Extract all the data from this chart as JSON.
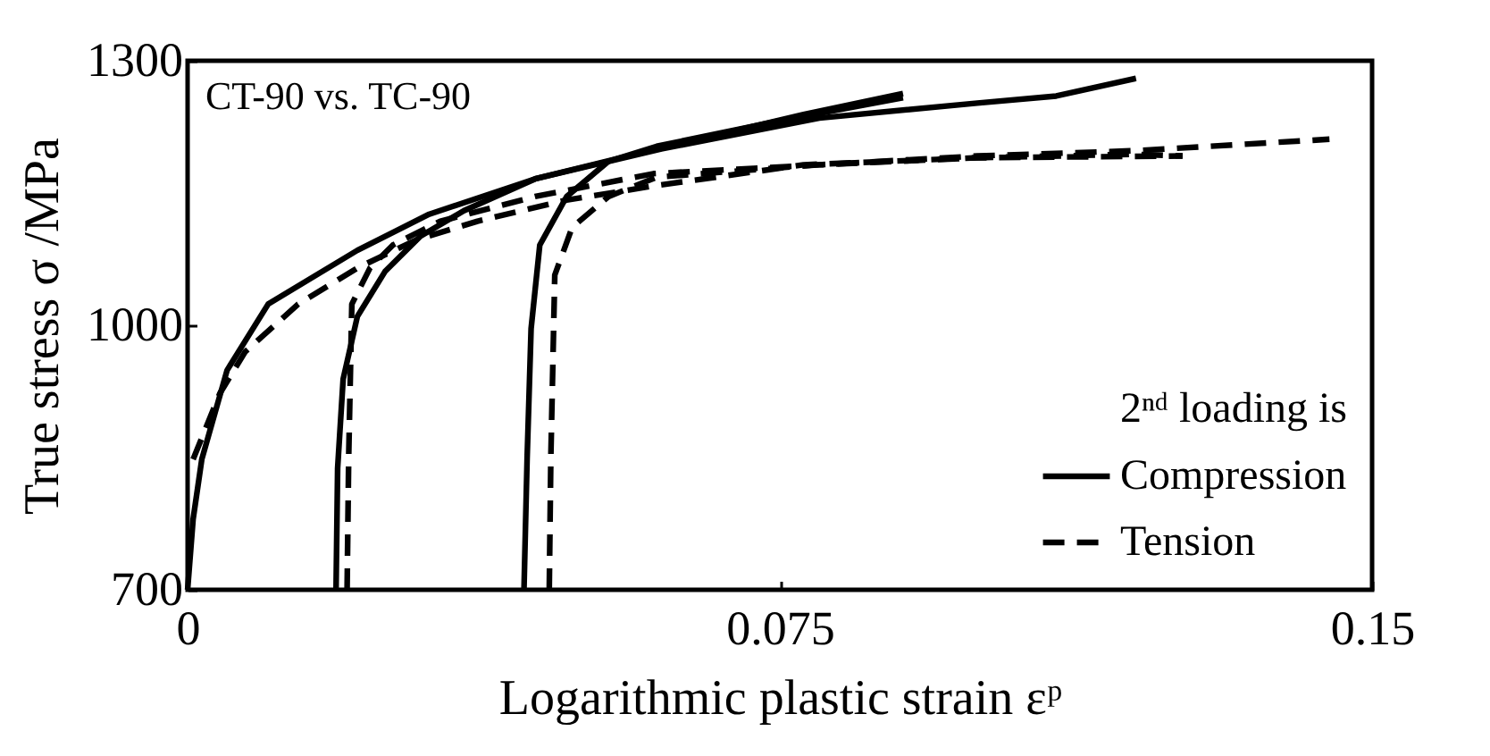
{
  "chart_data": {
    "type": "line",
    "xlabel": "Logarithmic plastic strain εᵖ",
    "ylabel": "True stress σ /MPa",
    "legend_title": "2ⁿᵈ loading is",
    "annotations": [
      "CT-90 vs. TC-90"
    ],
    "xlim": [
      0,
      0.15
    ],
    "ylim": [
      700,
      1300
    ],
    "xticks": [
      0,
      0.075,
      0.15
    ],
    "yticks": [
      700,
      1000,
      1300
    ],
    "grid": false,
    "legend": "bottom right",
    "marker": "none",
    "series": [
      {
        "name": "Compression",
        "color": "#000000",
        "line_style": "solid",
        "x": [
          0,
          0.0007,
          0.0018,
          0.005,
          0.0102,
          0.0215,
          0.0306,
          0.044,
          0.059,
          0.078,
          0.0906
        ],
        "values": [
          700,
          780,
          848,
          949,
          1024,
          1085,
          1126,
          1166,
          1199,
          1239,
          1263
        ]
      },
      {
        "color": "#000000",
        "line_style": "solid",
        "x": [
          0.0188,
          0.019,
          0.0197,
          0.0215,
          0.025,
          0.0295,
          0.035,
          0.044,
          0.06,
          0.08,
          0.1,
          0.11,
          0.1201
        ],
        "values": [
          700,
          838,
          939,
          1010,
          1061,
          1101,
          1130,
          1166,
          1200,
          1235,
          1252,
          1260,
          1280
        ]
      },
      {
        "color": "#000000",
        "line_style": "solid",
        "x": [
          0.0426,
          0.043,
          0.0435,
          0.0446,
          0.048,
          0.0533,
          0.0594,
          0.075,
          0.0906
        ],
        "values": [
          700,
          850,
          996,
          1091,
          1146,
          1186,
          1203,
          1232,
          1258
        ]
      },
      {
        "name": "Tension",
        "color": "#000000",
        "line_style": "dashed",
        "x": [
          0.0007,
          0.0041,
          0.0073,
          0.014,
          0.0215,
          0.029,
          0.0367,
          0.048,
          0.059,
          0.078,
          0.1,
          0.126
        ],
        "values": [
          848,
          923,
          970,
          1024,
          1065,
          1097,
          1118,
          1142,
          1158,
          1182,
          1190,
          1192
        ]
      },
      {
        "color": "#000000",
        "line_style": "dashed",
        "x": [
          0.0202,
          0.0204,
          0.0208,
          0.0231,
          0.026,
          0.032,
          0.044,
          0.059,
          0.08,
          0.1,
          0.12,
          0.1446
        ],
        "values": [
          700,
          850,
          1024,
          1065,
          1091,
          1118,
          1146,
          1172,
          1182,
          1192,
          1198,
          1211
        ]
      },
      {
        "color": "#000000",
        "line_style": "dashed",
        "x": [
          0.0458,
          0.046,
          0.0465,
          0.0487,
          0.0533,
          0.0594,
          0.08,
          0.1,
          0.12,
          0.126
        ],
        "values": [
          700,
          850,
          1057,
          1111,
          1146,
          1168,
          1182,
          1190,
          1194,
          1192
        ]
      }
    ]
  }
}
